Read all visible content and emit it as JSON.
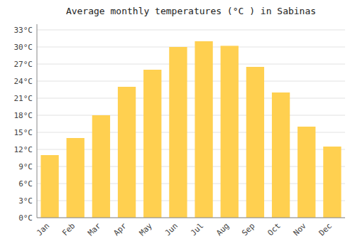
{
  "chart_data": {
    "type": "bar",
    "title": "Average monthly temperatures (°C ) in Sabinas",
    "categories": [
      "Jan",
      "Feb",
      "Mar",
      "Apr",
      "May",
      "Jun",
      "Jul",
      "Aug",
      "Sep",
      "Oct",
      "Nov",
      "Dec"
    ],
    "values": [
      11,
      14,
      18,
      23,
      26,
      30,
      31,
      30.2,
      26.5,
      22,
      16,
      12.5
    ],
    "color": "#FFD050",
    "ylim": [
      0,
      34
    ],
    "yticks": [
      {
        "value": 0,
        "label": "0°C"
      },
      {
        "value": 3,
        "label": "3°C"
      },
      {
        "value": 6,
        "label": "6°C"
      },
      {
        "value": 9,
        "label": "9°C"
      },
      {
        "value": 12,
        "label": "12°C"
      },
      {
        "value": 15,
        "label": "15°C"
      },
      {
        "value": 18,
        "label": "18°C"
      },
      {
        "value": 21,
        "label": "21°C"
      },
      {
        "value": 24,
        "label": "24°C"
      },
      {
        "value": 27,
        "label": "27°C"
      },
      {
        "value": 30,
        "label": "30°C"
      },
      {
        "value": 33,
        "label": "33°C"
      }
    ],
    "grid": true
  }
}
